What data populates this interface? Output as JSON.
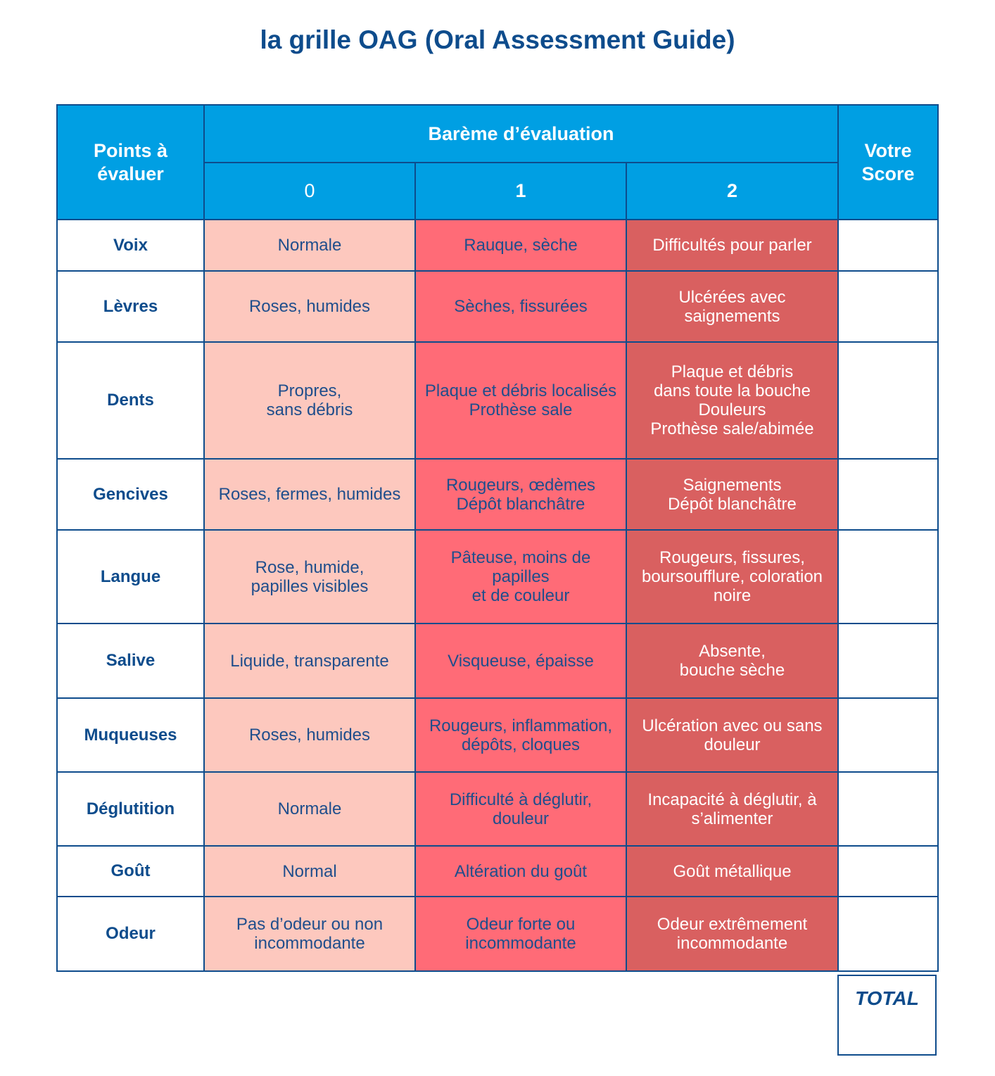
{
  "title": "la grille OAG (Oral Assessment Guide)",
  "header": {
    "points_label": "Points à\névaluer",
    "bareme_label": "Barème d’évaluation",
    "score_0": "0",
    "score_1": "1",
    "score_2": "2",
    "votre_score_label": "Votre\nScore"
  },
  "colors": {
    "header_blue": "#009fe3",
    "text_navy": "#0e4c8c",
    "score0_bg": "#fdc8be",
    "score1_bg": "#ff6b77",
    "score2_bg": "#d96060"
  },
  "rows": [
    {
      "point": "Voix",
      "s0": "Normale",
      "s1": "Rauque, sèche",
      "s2": "Difficultés pour parler",
      "score": ""
    },
    {
      "point": "Lèvres",
      "s0": "Roses, humides",
      "s1": "Sèches, fissurées",
      "s2": "Ulcérées avec\nsaignements",
      "score": ""
    },
    {
      "point": "Dents",
      "s0": "Propres,\nsans débris",
      "s1": "Plaque et débris localisés\nProthèse sale",
      "s2": "Plaque et débris\ndans toute la bouche\nDouleurs\nProthèse sale/abimée",
      "score": ""
    },
    {
      "point": "Gencives",
      "s0": "Roses, fermes, humides",
      "s1": "Rougeurs, œdèmes\nDépôt blanchâtre",
      "s2": "Saignements\nDépôt blanchâtre",
      "score": ""
    },
    {
      "point": "Langue",
      "s0": "Rose, humide,\npapilles visibles",
      "s1": "Pâteuse, moins de papilles\net de couleur",
      "s2": "Rougeurs, fissures,\nboursoufflure, coloration\nnoire",
      "score": ""
    },
    {
      "point": "Salive",
      "s0": "Liquide, transparente",
      "s1": "Visqueuse, épaisse",
      "s2": "Absente,\nbouche sèche",
      "score": ""
    },
    {
      "point": "Muqueuses",
      "s0": "Roses, humides",
      "s1": "Rougeurs, inflammation,\ndépôts, cloques",
      "s2": "Ulcération avec ou sans\ndouleur",
      "score": ""
    },
    {
      "point": "Déglutition",
      "s0": "Normale",
      "s1": "Difficulté à déglutir,\ndouleur",
      "s2": "Incapacité à déglutir, à\ns’alimenter",
      "score": ""
    },
    {
      "point": "Goût",
      "s0": "Normal",
      "s1": "Altération du goût",
      "s2": "Goût métallique",
      "score": ""
    },
    {
      "point": "Odeur",
      "s0": "Pas d’odeur ou non\nincommodante",
      "s1": "Odeur forte ou\nincommodante",
      "s2": "Odeur extrêmement\nincommodante",
      "score": ""
    }
  ],
  "total": {
    "label": "TOTAL",
    "value": ""
  }
}
